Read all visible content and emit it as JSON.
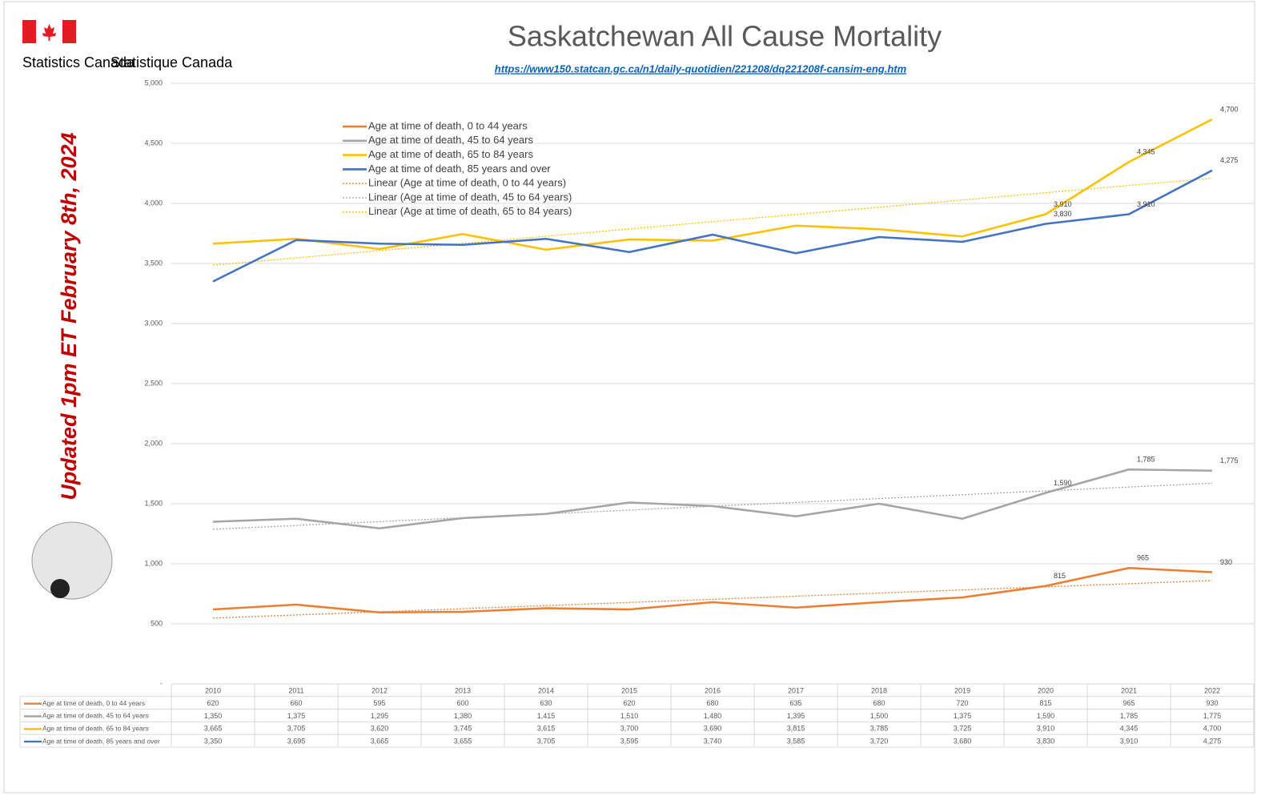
{
  "header": {
    "agency_en": "Statistics Canada",
    "agency_fr": "Statistique Canada",
    "updated": "Updated 1pm ET February 8th, 2024"
  },
  "chart_data": {
    "type": "line",
    "title": "Saskatchewan All Cause Mortality",
    "subtitle": "https://www150.statcan.gc.ca/n1/daily-quotidien/221208/dq221208f-cansim-eng.htm",
    "categories": [
      "2010",
      "2011",
      "2012",
      "2013",
      "2014",
      "2015",
      "2016",
      "2017",
      "2018",
      "2019",
      "2020",
      "2021",
      "2022"
    ],
    "series": [
      {
        "name": "Age at time of death, 0 to 44 years",
        "color": "#ed7d31",
        "trendline": "Linear (Age at time of death, 0 to 44 years)",
        "values": [
          620,
          660,
          595,
          600,
          630,
          620,
          680,
          635,
          680,
          720,
          815,
          965,
          930
        ],
        "value_labels": [
          null,
          null,
          null,
          null,
          null,
          null,
          null,
          null,
          null,
          null,
          "815",
          "965",
          "930"
        ]
      },
      {
        "name": "Age at time of death, 45 to 64 years",
        "color": "#a5a5a5",
        "trendline": "Linear (Age at time of death, 45 to 64 years)",
        "values": [
          1350,
          1375,
          1295,
          1380,
          1415,
          1510,
          1480,
          1395,
          1500,
          1375,
          1590,
          1785,
          1775
        ],
        "value_labels": [
          null,
          null,
          null,
          null,
          null,
          null,
          null,
          null,
          null,
          null,
          "1,590",
          "1,785",
          "1,775"
        ]
      },
      {
        "name": "Age at time of death, 65 to 84 years",
        "color": "#ffc000",
        "trendline": "Linear (Age at time of death, 65 to 84 years)",
        "values": [
          3665,
          3705,
          3620,
          3745,
          3615,
          3700,
          3690,
          3815,
          3785,
          3725,
          3910,
          4345,
          4700
        ],
        "value_labels": [
          null,
          null,
          null,
          null,
          null,
          null,
          null,
          null,
          null,
          null,
          "3,910",
          "4,345",
          "4,700"
        ]
      },
      {
        "name": "Age at time of death, 85 years and over",
        "color": "#4472c4",
        "values": [
          3350,
          3695,
          3665,
          3655,
          3705,
          3595,
          3740,
          3585,
          3720,
          3680,
          3830,
          3910,
          4275
        ],
        "value_labels": [
          null,
          null,
          null,
          null,
          null,
          null,
          null,
          null,
          null,
          null,
          "3,830",
          "3,910",
          "4,275"
        ]
      }
    ],
    "ylim": [
      0,
      5000
    ],
    "yticks": [
      {
        "value": 0,
        "label": "-"
      },
      500,
      {
        "value": 1000,
        "label": "1,000"
      },
      {
        "value": 1500,
        "label": "1,500"
      },
      {
        "value": 2000,
        "label": "2,000"
      },
      {
        "value": 2500,
        "label": "2,500"
      },
      {
        "value": 3000,
        "label": "3,000"
      },
      {
        "value": 3500,
        "label": "3,500"
      },
      {
        "value": 4000,
        "label": "4,000"
      },
      {
        "value": 4500,
        "label": "4,500"
      },
      {
        "value": 5000,
        "label": "5,000"
      }
    ],
    "grid": true,
    "data_table": {
      "rows": [
        [
          "620",
          "660",
          "595",
          "600",
          "630",
          "620",
          "680",
          "635",
          "680",
          "720",
          "815",
          "965",
          "930"
        ],
        [
          "1,350",
          "1,375",
          "1,295",
          "1,380",
          "1,415",
          "1,510",
          "1,480",
          "1,395",
          "1,500",
          "1,375",
          "1,590",
          "1,785",
          "1,775"
        ],
        [
          "3,665",
          "3,705",
          "3,620",
          "3,745",
          "3,615",
          "3,700",
          "3,690",
          "3,815",
          "3,785",
          "3,725",
          "3,910",
          "4,345",
          "4,700"
        ],
        [
          "3,350",
          "3,695",
          "3,665",
          "3,655",
          "3,705",
          "3,595",
          "3,740",
          "3,585",
          "3,720",
          "3,680",
          "3,830",
          "3,910",
          "4,275"
        ]
      ]
    }
  }
}
